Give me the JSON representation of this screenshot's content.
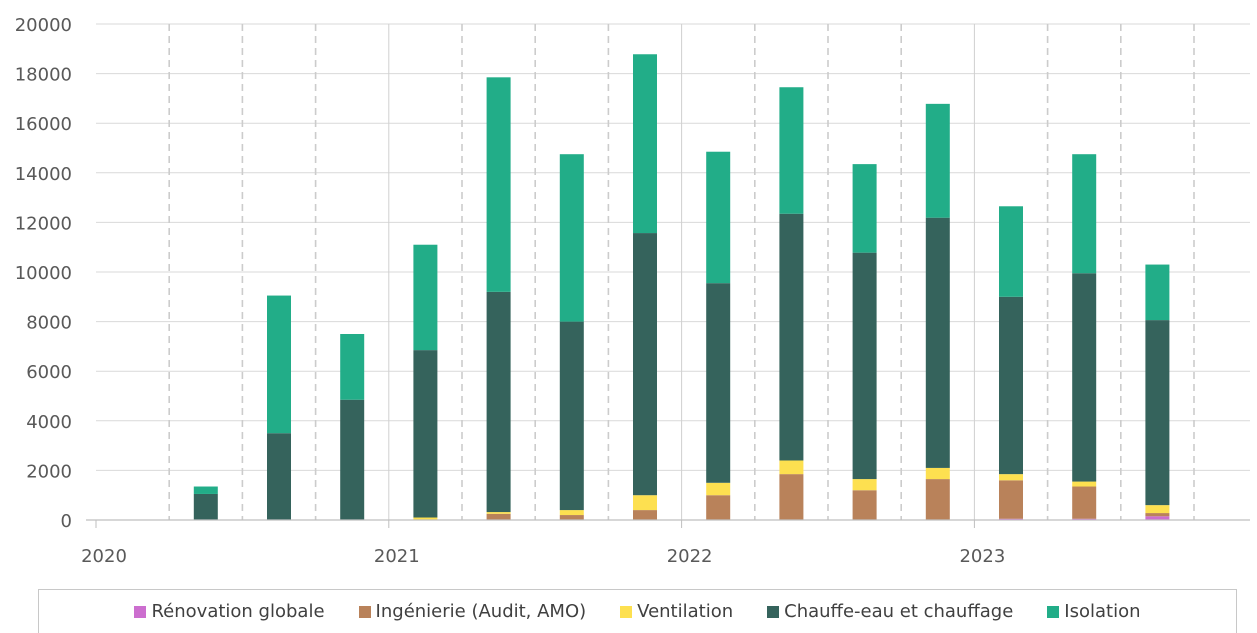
{
  "chart_data": {
    "type": "bar",
    "stacked": true,
    "ylim": [
      0,
      20000
    ],
    "yticks": [
      "0",
      "2000",
      "4000",
      "6000",
      "8000",
      "10000",
      "12000",
      "14000",
      "16000",
      "18000",
      "20000"
    ],
    "xlabels": [
      "2020",
      "2021",
      "2022",
      "2023"
    ],
    "grid": true,
    "legend_position": "bottom",
    "categories": [
      "2020-T2",
      "2020-T3",
      "2020-T4",
      "2021-T1",
      "2021-T2",
      "2021-T3",
      "2021-T4",
      "2022-T1",
      "2022-T2",
      "2022-T3",
      "2022-T4",
      "2023-T1",
      "2023-T2",
      "2023-T3"
    ],
    "series": [
      {
        "name": "Rénovation globale",
        "color": "#cc6ecf",
        "values": [
          0,
          0,
          0,
          0,
          0,
          0,
          0,
          0,
          0,
          0,
          0,
          50,
          50,
          150
        ]
      },
      {
        "name": "Ingénierie (Audit, AMO)",
        "color": "#b9825a",
        "values": [
          0,
          0,
          0,
          20,
          250,
          200,
          400,
          1000,
          1850,
          1200,
          1650,
          1550,
          1300,
          130
        ]
      },
      {
        "name": "Ventilation",
        "color": "#fde050",
        "values": [
          0,
          0,
          0,
          80,
          70,
          200,
          600,
          500,
          550,
          450,
          450,
          250,
          200,
          320
        ]
      },
      {
        "name": "Chauffe-eau et chauffage",
        "color": "#35635c",
        "values": [
          1050,
          3500,
          4850,
          6750,
          8880,
          7600,
          10570,
          8050,
          9950,
          9130,
          10090,
          7150,
          8400,
          7460
        ]
      },
      {
        "name": "Isolation",
        "color": "#22ad88",
        "values": [
          300,
          5550,
          2650,
          4250,
          8650,
          6750,
          7210,
          5300,
          5100,
          3570,
          4590,
          3650,
          4800,
          2240
        ]
      }
    ]
  }
}
